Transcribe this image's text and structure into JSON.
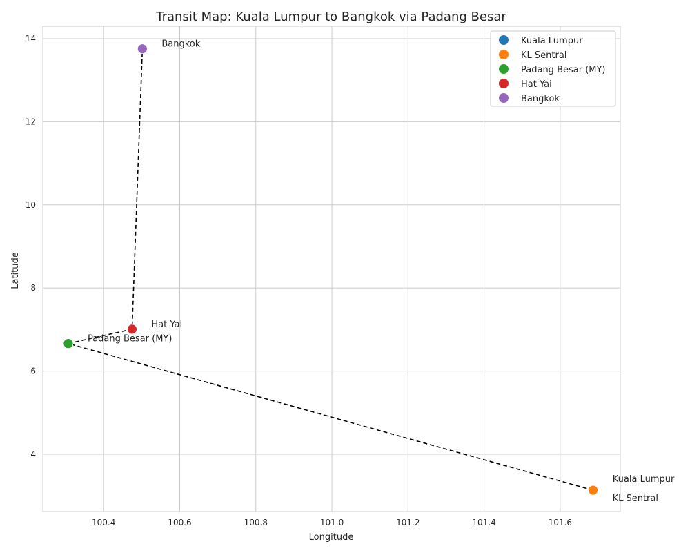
{
  "chart_data": {
    "type": "scatter",
    "title": "Transit Map: Kuala Lumpur to Bangkok via Padang Besar",
    "xlabel": "Longitude",
    "ylabel": "Latitude",
    "xlim": [
      100.24,
      101.758
    ],
    "ylim": [
      2.62,
      14.3
    ],
    "grid": true,
    "legend_position": "top-right",
    "x_ticks": [
      100.4,
      100.6,
      100.8,
      101.0,
      101.2,
      101.4,
      101.6
    ],
    "x_tick_labels": [
      "100.4",
      "100.6",
      "100.8",
      "101.0",
      "101.2",
      "101.4",
      "101.6"
    ],
    "y_ticks": [
      4,
      6,
      8,
      10,
      12,
      14
    ],
    "y_tick_labels": [
      "4",
      "6",
      "8",
      "10",
      "12",
      "14"
    ],
    "series": [
      {
        "name": "Kuala Lumpur",
        "x": 101.6869,
        "y": 3.139,
        "color": "#1f77b4"
      },
      {
        "name": "KL Sentral",
        "x": 101.6865,
        "y": 3.134,
        "color": "#ff7f0e"
      },
      {
        "name": "Padang Besar (MY)",
        "x": 100.307,
        "y": 6.663,
        "color": "#2ca02c"
      },
      {
        "name": "Hat Yai",
        "x": 100.4747,
        "y": 7.0086,
        "color": "#d62728"
      },
      {
        "name": "Bangkok",
        "x": 100.5018,
        "y": 13.7563,
        "color": "#9467bd"
      }
    ],
    "route": {
      "style": "dashed",
      "color": "#000000",
      "order": [
        "Kuala Lumpur",
        "KL Sentral",
        "Padang Besar (MY)",
        "Hat Yai",
        "Bangkok"
      ]
    }
  }
}
